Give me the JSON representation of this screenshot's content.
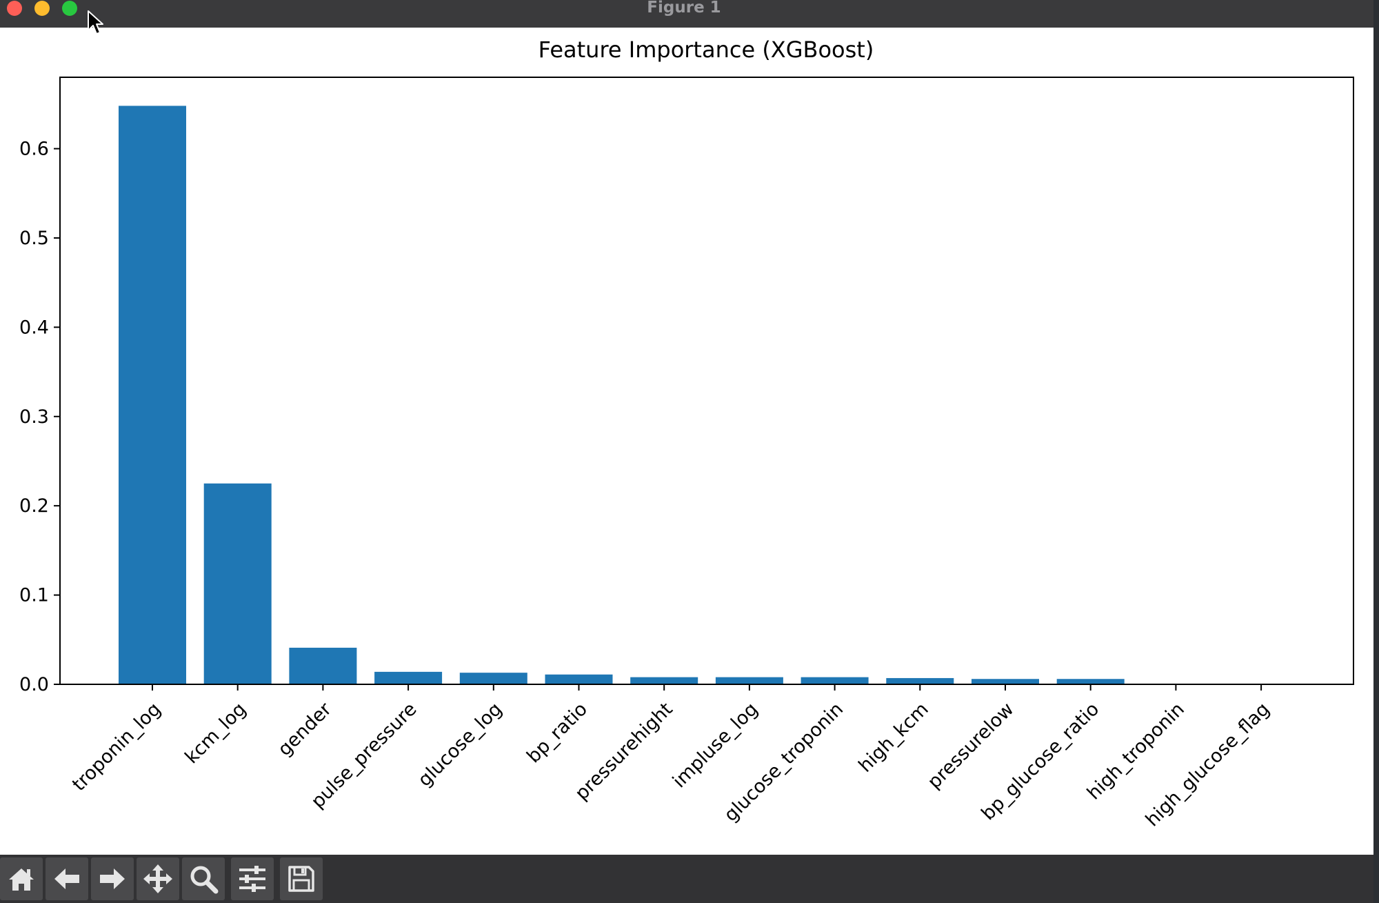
{
  "window": {
    "title": "Figure 1"
  },
  "colors": {
    "bar": "#1f77b4",
    "titlebar": "#3a3a3c",
    "toolbar": "#323234"
  },
  "toolbar": {
    "buttons": [
      {
        "name": "home-button",
        "icon": "home-icon"
      },
      {
        "name": "back-button",
        "icon": "arrow-left-icon"
      },
      {
        "name": "forward-button",
        "icon": "arrow-right-icon"
      },
      {
        "name": "pan-button",
        "icon": "move-icon"
      },
      {
        "name": "zoom-button",
        "icon": "magnifier-icon"
      },
      {
        "name": "configure-subplots-button",
        "icon": "sliders-icon"
      },
      {
        "name": "save-button",
        "icon": "floppy-disk-icon"
      }
    ]
  },
  "chart_data": {
    "type": "bar",
    "title": "Feature Importance (XGBoost)",
    "xlabel": "",
    "ylabel": "",
    "categories": [
      "troponin_log",
      "kcm_log",
      "gender",
      "pulse_pressure",
      "glucose_log",
      "bp_ratio",
      "pressurehight",
      "impluse_log",
      "glucose_troponin",
      "high_kcm",
      "pressurelow",
      "bp_glucose_ratio",
      "high_troponin",
      "high_glucose_flag"
    ],
    "values": [
      0.648,
      0.225,
      0.041,
      0.014,
      0.013,
      0.011,
      0.008,
      0.008,
      0.008,
      0.007,
      0.006,
      0.006,
      0.0,
      0.0
    ],
    "ylim": [
      0,
      0.68
    ],
    "yticks": [
      0.0,
      0.1,
      0.2,
      0.3,
      0.4,
      0.5,
      0.6
    ],
    "ytick_labels": [
      "0.0",
      "0.1",
      "0.2",
      "0.3",
      "0.4",
      "0.5",
      "0.6"
    ],
    "grid": false,
    "legend": "none"
  }
}
